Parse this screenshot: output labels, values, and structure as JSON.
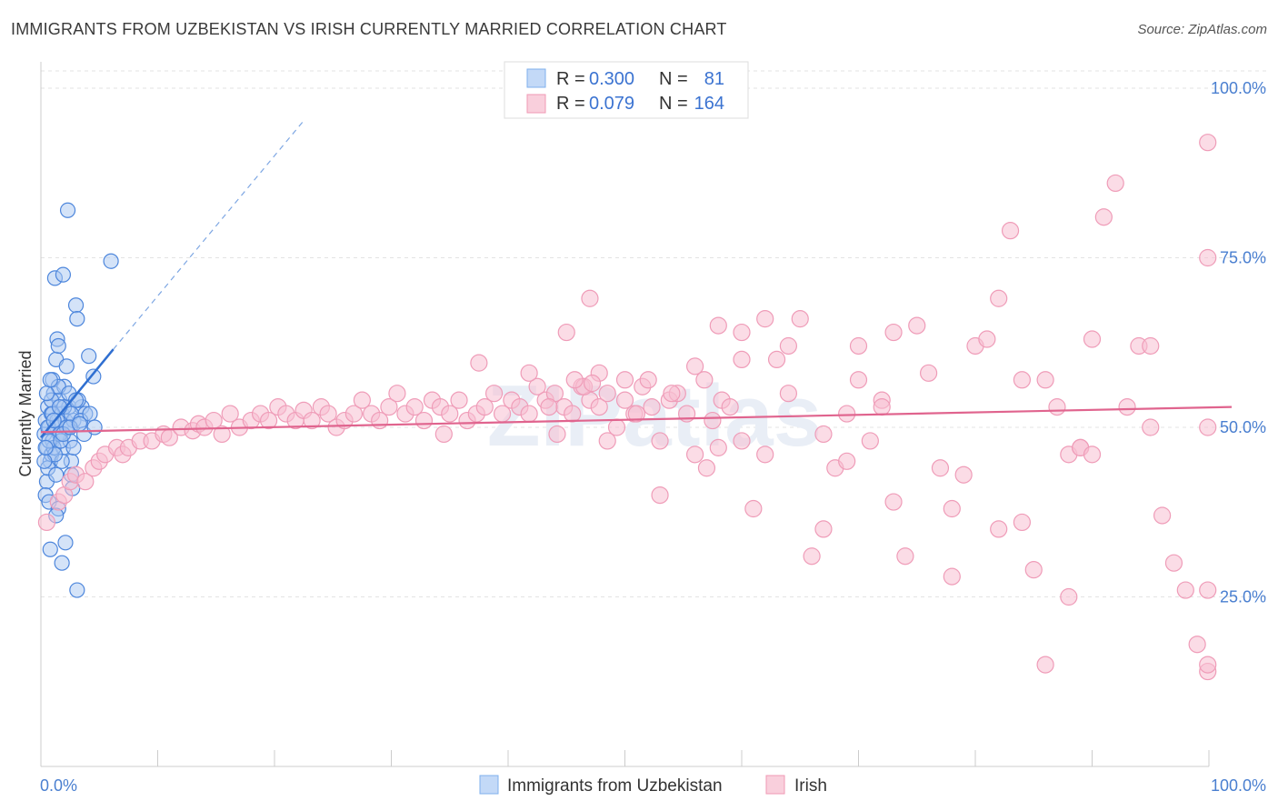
{
  "title": "IMMIGRANTS FROM UZBEKISTAN VS IRISH CURRENTLY MARRIED CORRELATION CHART",
  "source": "Source: ZipAtlas.com",
  "watermark": "ZIPatlas",
  "legend_top": [
    {
      "r_label": "R =",
      "r_value": "0.300",
      "n_label": "N =",
      "n_value": "81",
      "color": "#7fb0ee",
      "fill": "#c3d9f7"
    },
    {
      "r_label": "R =",
      "r_value": "0.079",
      "n_label": "N =",
      "n_value": "164",
      "color": "#f09ab5",
      "fill": "#f9cfdc"
    }
  ],
  "chart_data": {
    "type": "scatter",
    "title": "IMMIGRANTS FROM UZBEKISTAN VS IRISH CURRENTLY MARRIED CORRELATION CHART",
    "xlabel": "",
    "ylabel": "Currently Married",
    "xlim": [
      0,
      100
    ],
    "ylim": [
      0,
      100
    ],
    "x_tick_labels": [
      "0.0%",
      "100.0%"
    ],
    "y_tick_labels": [
      "25.0%",
      "50.0%",
      "75.0%",
      "100.0%"
    ],
    "y_ticks": [
      25,
      50,
      75,
      100
    ],
    "grid": true,
    "legend": "bottom-center",
    "series": [
      {
        "name": "Immigrants from Uzbekistan",
        "color": "#3b73d1",
        "fill": "#a9c8f2",
        "trend": {
          "x0": 0,
          "y0": 48.5,
          "x1": 6.2,
          "y1": 61.5,
          "dash_to_x": 22.4,
          "dash_to_y": 95
        },
        "points": [
          [
            0.3,
            49
          ],
          [
            0.4,
            51
          ],
          [
            0.5,
            47
          ],
          [
            0.6,
            53
          ],
          [
            0.7,
            50
          ],
          [
            0.8,
            45
          ],
          [
            0.9,
            52
          ],
          [
            1.0,
            48
          ],
          [
            1.1,
            55
          ],
          [
            1.2,
            50
          ],
          [
            0.5,
            42
          ],
          [
            0.6,
            44
          ],
          [
            0.4,
            40
          ],
          [
            0.7,
            39
          ],
          [
            0.9,
            46
          ],
          [
            1.0,
            57
          ],
          [
            1.3,
            60
          ],
          [
            1.4,
            63
          ],
          [
            1.5,
            62
          ],
          [
            1.6,
            54
          ],
          [
            1.7,
            49
          ],
          [
            1.8,
            52
          ],
          [
            1.9,
            47
          ],
          [
            2.0,
            56
          ],
          [
            2.1,
            51
          ],
          [
            2.2,
            59
          ],
          [
            2.3,
            50
          ],
          [
            2.4,
            53
          ],
          [
            2.5,
            48
          ],
          [
            2.6,
            45
          ],
          [
            1.2,
            72
          ],
          [
            1.9,
            72.5
          ],
          [
            2.3,
            82
          ],
          [
            3.0,
            68
          ],
          [
            3.1,
            66
          ],
          [
            4.1,
            60.5
          ],
          [
            6.0,
            74.5
          ],
          [
            4.5,
            57.5
          ],
          [
            3.5,
            53
          ],
          [
            3.8,
            52
          ],
          [
            2.8,
            51
          ],
          [
            3.2,
            54
          ],
          [
            2.6,
            43
          ],
          [
            2.7,
            41
          ],
          [
            1.5,
            38
          ],
          [
            1.3,
            37
          ],
          [
            0.8,
            32
          ],
          [
            1.8,
            30
          ],
          [
            2.1,
            33
          ],
          [
            3.1,
            26
          ],
          [
            0.6,
            50
          ],
          [
            0.9,
            54
          ],
          [
            1.1,
            47
          ],
          [
            1.4,
            51
          ],
          [
            1.6,
            49
          ],
          [
            1.8,
            45
          ],
          [
            2.0,
            53
          ],
          [
            2.2,
            50
          ],
          [
            0.7,
            48
          ],
          [
            1.0,
            52
          ],
          [
            1.2,
            46
          ],
          [
            1.5,
            56
          ],
          [
            1.7,
            48
          ],
          [
            2.4,
            55
          ],
          [
            2.6,
            52
          ],
          [
            3.4,
            51
          ],
          [
            3.7,
            49
          ],
          [
            4.2,
            52
          ],
          [
            4.6,
            50
          ],
          [
            0.5,
            55
          ],
          [
            0.8,
            57
          ],
          [
            1.3,
            43
          ],
          [
            1.9,
            49
          ],
          [
            2.5,
            50
          ],
          [
            3.0,
            54
          ],
          [
            1.1,
            51
          ],
          [
            1.6,
            53
          ],
          [
            0.3,
            45
          ],
          [
            0.4,
            47
          ],
          [
            2.8,
            47
          ],
          [
            3.3,
            50.5
          ]
        ]
      },
      {
        "name": "Irish",
        "color": "#e0648e",
        "fill": "#f7bfd1",
        "trend": {
          "x0": 0,
          "y0": 49.3,
          "x1": 100,
          "y1": 53
        },
        "points": [
          [
            0.5,
            36
          ],
          [
            1.5,
            39
          ],
          [
            2.0,
            40
          ],
          [
            2.5,
            42
          ],
          [
            3.0,
            43
          ],
          [
            3.8,
            42
          ],
          [
            4.5,
            44
          ],
          [
            5.0,
            45
          ],
          [
            5.5,
            46
          ],
          [
            6.5,
            47
          ],
          [
            7.0,
            46
          ],
          [
            7.5,
            47
          ],
          [
            8.5,
            48
          ],
          [
            9.5,
            48
          ],
          [
            10.5,
            49
          ],
          [
            11.0,
            48.5
          ],
          [
            12.0,
            50
          ],
          [
            13.0,
            49.5
          ],
          [
            13.5,
            50.5
          ],
          [
            14.0,
            50
          ],
          [
            14.8,
            51
          ],
          [
            15.5,
            49
          ],
          [
            16.2,
            52
          ],
          [
            17.0,
            50
          ],
          [
            18.0,
            51
          ],
          [
            18.8,
            52
          ],
          [
            19.5,
            51
          ],
          [
            20.3,
            53
          ],
          [
            21.0,
            52
          ],
          [
            21.8,
            51
          ],
          [
            22.5,
            52.5
          ],
          [
            23.2,
            51
          ],
          [
            24.0,
            53
          ],
          [
            24.6,
            52
          ],
          [
            25.3,
            50
          ],
          [
            26.0,
            51
          ],
          [
            26.8,
            52
          ],
          [
            27.5,
            54
          ],
          [
            28.3,
            52
          ],
          [
            29.0,
            51
          ],
          [
            29.8,
            53
          ],
          [
            30.5,
            55
          ],
          [
            31.2,
            52
          ],
          [
            32.0,
            53
          ],
          [
            32.8,
            51
          ],
          [
            33.5,
            54
          ],
          [
            34.2,
            53
          ],
          [
            35.0,
            52
          ],
          [
            35.8,
            54
          ],
          [
            36.5,
            51
          ],
          [
            37.3,
            52
          ],
          [
            38.0,
            53
          ],
          [
            38.8,
            55
          ],
          [
            39.5,
            52
          ],
          [
            40.3,
            54
          ],
          [
            41.0,
            53
          ],
          [
            41.8,
            52
          ],
          [
            42.5,
            56
          ],
          [
            43.2,
            54
          ],
          [
            44.0,
            55
          ],
          [
            44.8,
            53
          ],
          [
            45.5,
            52
          ],
          [
            46.3,
            56
          ],
          [
            47.0,
            54
          ],
          [
            47.8,
            53
          ],
          [
            48.5,
            55
          ],
          [
            49.3,
            50
          ],
          [
            50.0,
            54
          ],
          [
            50.8,
            52
          ],
          [
            51.5,
            56
          ],
          [
            52.3,
            53
          ],
          [
            53.0,
            48
          ],
          [
            53.8,
            54
          ],
          [
            54.5,
            55
          ],
          [
            55.3,
            52
          ],
          [
            56.0,
            59
          ],
          [
            56.8,
            57
          ],
          [
            57.5,
            51
          ],
          [
            58.3,
            54
          ],
          [
            59.0,
            53
          ],
          [
            46.5,
            56
          ],
          [
            47.8,
            58
          ],
          [
            37.5,
            59.5
          ],
          [
            41.8,
            58
          ],
          [
            47.2,
            56.5
          ],
          [
            45.7,
            57
          ],
          [
            48.5,
            48
          ],
          [
            44.2,
            49
          ],
          [
            43.5,
            53
          ],
          [
            34.5,
            49
          ],
          [
            45,
            64
          ],
          [
            47,
            69
          ],
          [
            52,
            57
          ],
          [
            53,
            40
          ],
          [
            54,
            55
          ],
          [
            56,
            46
          ],
          [
            57,
            44
          ],
          [
            58,
            47
          ],
          [
            58,
            65
          ],
          [
            60,
            60
          ],
          [
            60,
            64
          ],
          [
            62,
            66
          ],
          [
            63,
            60
          ],
          [
            64,
            62
          ],
          [
            65,
            66
          ],
          [
            67,
            49
          ],
          [
            68,
            44
          ],
          [
            69,
            45
          ],
          [
            70,
            57
          ],
          [
            70,
            62
          ],
          [
            71,
            48
          ],
          [
            72,
            54
          ],
          [
            73,
            39
          ],
          [
            73,
            64
          ],
          [
            74,
            31
          ],
          [
            75,
            65
          ],
          [
            76,
            58
          ],
          [
            77,
            44
          ],
          [
            78,
            38
          ],
          [
            79,
            43
          ],
          [
            80,
            62
          ],
          [
            81,
            63
          ],
          [
            82,
            69
          ],
          [
            82,
            35
          ],
          [
            83,
            79
          ],
          [
            84,
            57
          ],
          [
            84,
            36
          ],
          [
            85,
            29
          ],
          [
            86,
            57
          ],
          [
            87,
            53
          ],
          [
            88,
            25
          ],
          [
            88,
            46
          ],
          [
            89,
            47
          ],
          [
            90,
            63
          ],
          [
            91,
            81
          ],
          [
            92,
            86
          ],
          [
            93,
            53
          ],
          [
            94,
            62
          ],
          [
            95,
            62
          ],
          [
            96,
            37
          ],
          [
            97,
            30
          ],
          [
            98,
            26
          ],
          [
            99,
            18
          ],
          [
            100,
            14
          ],
          [
            101,
            15
          ],
          [
            102,
            75
          ],
          [
            103,
            92
          ],
          [
            104,
            50
          ],
          [
            60,
            48
          ],
          [
            61,
            38
          ],
          [
            66,
            31
          ],
          [
            67,
            35
          ],
          [
            72,
            53
          ],
          [
            64,
            55
          ],
          [
            50,
            57
          ],
          [
            51,
            52
          ],
          [
            62,
            46
          ],
          [
            69,
            52
          ],
          [
            78,
            28
          ],
          [
            86,
            15
          ],
          [
            89,
            47
          ],
          [
            90,
            46
          ],
          [
            95,
            50
          ],
          [
            100,
            26
          ]
        ]
      }
    ]
  },
  "bottom_legend": [
    {
      "label": "Immigrants from Uzbekistan"
    },
    {
      "label": "Irish"
    }
  ]
}
